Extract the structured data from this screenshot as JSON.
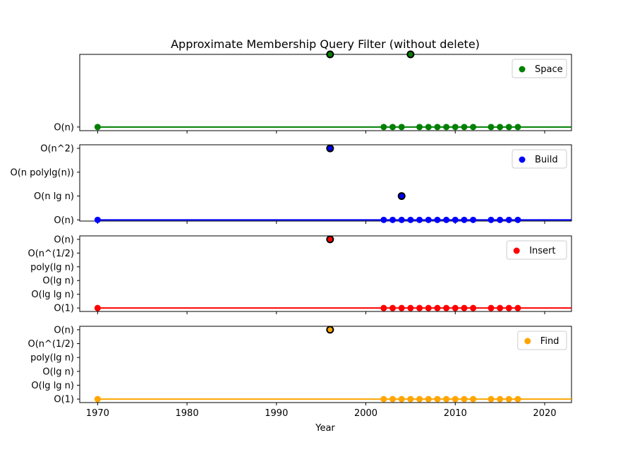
{
  "chart_data": {
    "type": "scatter",
    "title": "Approximate Membership Query Filter (without delete)",
    "xlabel": "Year",
    "xlim": [
      1968,
      2023
    ],
    "x_ticks": [
      1970,
      1980,
      1990,
      2000,
      2010,
      2020
    ],
    "grid": false,
    "panels": [
      {
        "name": "Space",
        "color": "#008000",
        "legend_placement": "top-right",
        "y_ticks": [
          "O(n)"
        ],
        "ylim": [
          -0.05,
          1.0
        ],
        "baseline": 0,
        "points": [
          {
            "x": 1970,
            "y": 0,
            "highlight": false
          },
          {
            "x": 1996,
            "y": 1,
            "highlight": true
          },
          {
            "x": 2002,
            "y": 0,
            "highlight": false
          },
          {
            "x": 2003,
            "y": 0,
            "highlight": false
          },
          {
            "x": 2004,
            "y": 0,
            "highlight": false
          },
          {
            "x": 2005,
            "y": 1,
            "highlight": true
          },
          {
            "x": 2006,
            "y": 0,
            "highlight": false
          },
          {
            "x": 2007,
            "y": 0,
            "highlight": false
          },
          {
            "x": 2008,
            "y": 0,
            "highlight": false
          },
          {
            "x": 2009,
            "y": 0,
            "highlight": false
          },
          {
            "x": 2010,
            "y": 0,
            "highlight": false
          },
          {
            "x": 2011,
            "y": 0,
            "highlight": false
          },
          {
            "x": 2012,
            "y": 0,
            "highlight": false
          },
          {
            "x": 2014,
            "y": 0,
            "highlight": false
          },
          {
            "x": 2015,
            "y": 0,
            "highlight": false
          },
          {
            "x": 2016,
            "y": 0,
            "highlight": false
          },
          {
            "x": 2017,
            "y": 0,
            "highlight": false
          }
        ]
      },
      {
        "name": "Build",
        "color": "#0000ff",
        "legend_placement": "top-right",
        "y_ticks": [
          "O(n)",
          "O(n lg n)",
          "O(n polylg(n))",
          "O(n^2)"
        ],
        "ylim": [
          -0.05,
          3.15
        ],
        "baseline": 0,
        "points": [
          {
            "x": 1970,
            "y": 0,
            "highlight": false
          },
          {
            "x": 1996,
            "y": 3,
            "highlight": true
          },
          {
            "x": 2002,
            "y": 0,
            "highlight": false
          },
          {
            "x": 2003,
            "y": 0,
            "highlight": false
          },
          {
            "x": 2004,
            "y": 1,
            "highlight": true
          },
          {
            "x": 2004,
            "y": 0,
            "highlight": false
          },
          {
            "x": 2005,
            "y": 0,
            "highlight": false
          },
          {
            "x": 2006,
            "y": 0,
            "highlight": false
          },
          {
            "x": 2007,
            "y": 0,
            "highlight": false
          },
          {
            "x": 2008,
            "y": 0,
            "highlight": false
          },
          {
            "x": 2009,
            "y": 0,
            "highlight": false
          },
          {
            "x": 2010,
            "y": 0,
            "highlight": false
          },
          {
            "x": 2011,
            "y": 0,
            "highlight": false
          },
          {
            "x": 2012,
            "y": 0,
            "highlight": false
          },
          {
            "x": 2014,
            "y": 0,
            "highlight": false
          },
          {
            "x": 2015,
            "y": 0,
            "highlight": false
          },
          {
            "x": 2016,
            "y": 0,
            "highlight": false
          },
          {
            "x": 2017,
            "y": 0,
            "highlight": false
          }
        ]
      },
      {
        "name": "Insert",
        "color": "#ff0000",
        "legend_placement": "top-right",
        "y_ticks": [
          "O(1)",
          "O(lg lg n)",
          "O(lg n)",
          "poly(lg n)",
          "O(n^(1/2)",
          "O(n)"
        ],
        "ylim": [
          -0.25,
          5.25
        ],
        "baseline": 0,
        "points": [
          {
            "x": 1970,
            "y": 0,
            "highlight": false
          },
          {
            "x": 1996,
            "y": 5,
            "highlight": true
          },
          {
            "x": 2002,
            "y": 0,
            "highlight": false
          },
          {
            "x": 2003,
            "y": 0,
            "highlight": false
          },
          {
            "x": 2004,
            "y": 0,
            "highlight": false
          },
          {
            "x": 2005,
            "y": 0,
            "highlight": false
          },
          {
            "x": 2006,
            "y": 0,
            "highlight": false
          },
          {
            "x": 2007,
            "y": 0,
            "highlight": false
          },
          {
            "x": 2008,
            "y": 0,
            "highlight": false
          },
          {
            "x": 2009,
            "y": 0,
            "highlight": false
          },
          {
            "x": 2010,
            "y": 0,
            "highlight": false
          },
          {
            "x": 2011,
            "y": 0,
            "highlight": false
          },
          {
            "x": 2012,
            "y": 0,
            "highlight": false
          },
          {
            "x": 2014,
            "y": 0,
            "highlight": false
          },
          {
            "x": 2015,
            "y": 0,
            "highlight": false
          },
          {
            "x": 2016,
            "y": 0,
            "highlight": false
          },
          {
            "x": 2017,
            "y": 0,
            "highlight": false
          }
        ]
      },
      {
        "name": "Find",
        "color": "#ffa500",
        "legend_placement": "top-right",
        "y_ticks": [
          "O(1)",
          "O(lg lg n)",
          "O(lg n)",
          "poly(lg n)",
          "O(n^(1/2)",
          "O(n)"
        ],
        "ylim": [
          -0.25,
          5.25
        ],
        "baseline": 0,
        "points": [
          {
            "x": 1970,
            "y": 0,
            "highlight": false
          },
          {
            "x": 1996,
            "y": 5,
            "highlight": true
          },
          {
            "x": 2002,
            "y": 0,
            "highlight": false
          },
          {
            "x": 2003,
            "y": 0,
            "highlight": false
          },
          {
            "x": 2004,
            "y": 0,
            "highlight": false
          },
          {
            "x": 2005,
            "y": 0,
            "highlight": false
          },
          {
            "x": 2006,
            "y": 0,
            "highlight": false
          },
          {
            "x": 2007,
            "y": 0,
            "highlight": false
          },
          {
            "x": 2008,
            "y": 0,
            "highlight": false
          },
          {
            "x": 2009,
            "y": 0,
            "highlight": false
          },
          {
            "x": 2010,
            "y": 0,
            "highlight": false
          },
          {
            "x": 2011,
            "y": 0,
            "highlight": false
          },
          {
            "x": 2012,
            "y": 0,
            "highlight": false
          },
          {
            "x": 2014,
            "y": 0,
            "highlight": false
          },
          {
            "x": 2015,
            "y": 0,
            "highlight": false
          },
          {
            "x": 2016,
            "y": 0,
            "highlight": false
          },
          {
            "x": 2017,
            "y": 0,
            "highlight": false
          }
        ]
      }
    ]
  }
}
